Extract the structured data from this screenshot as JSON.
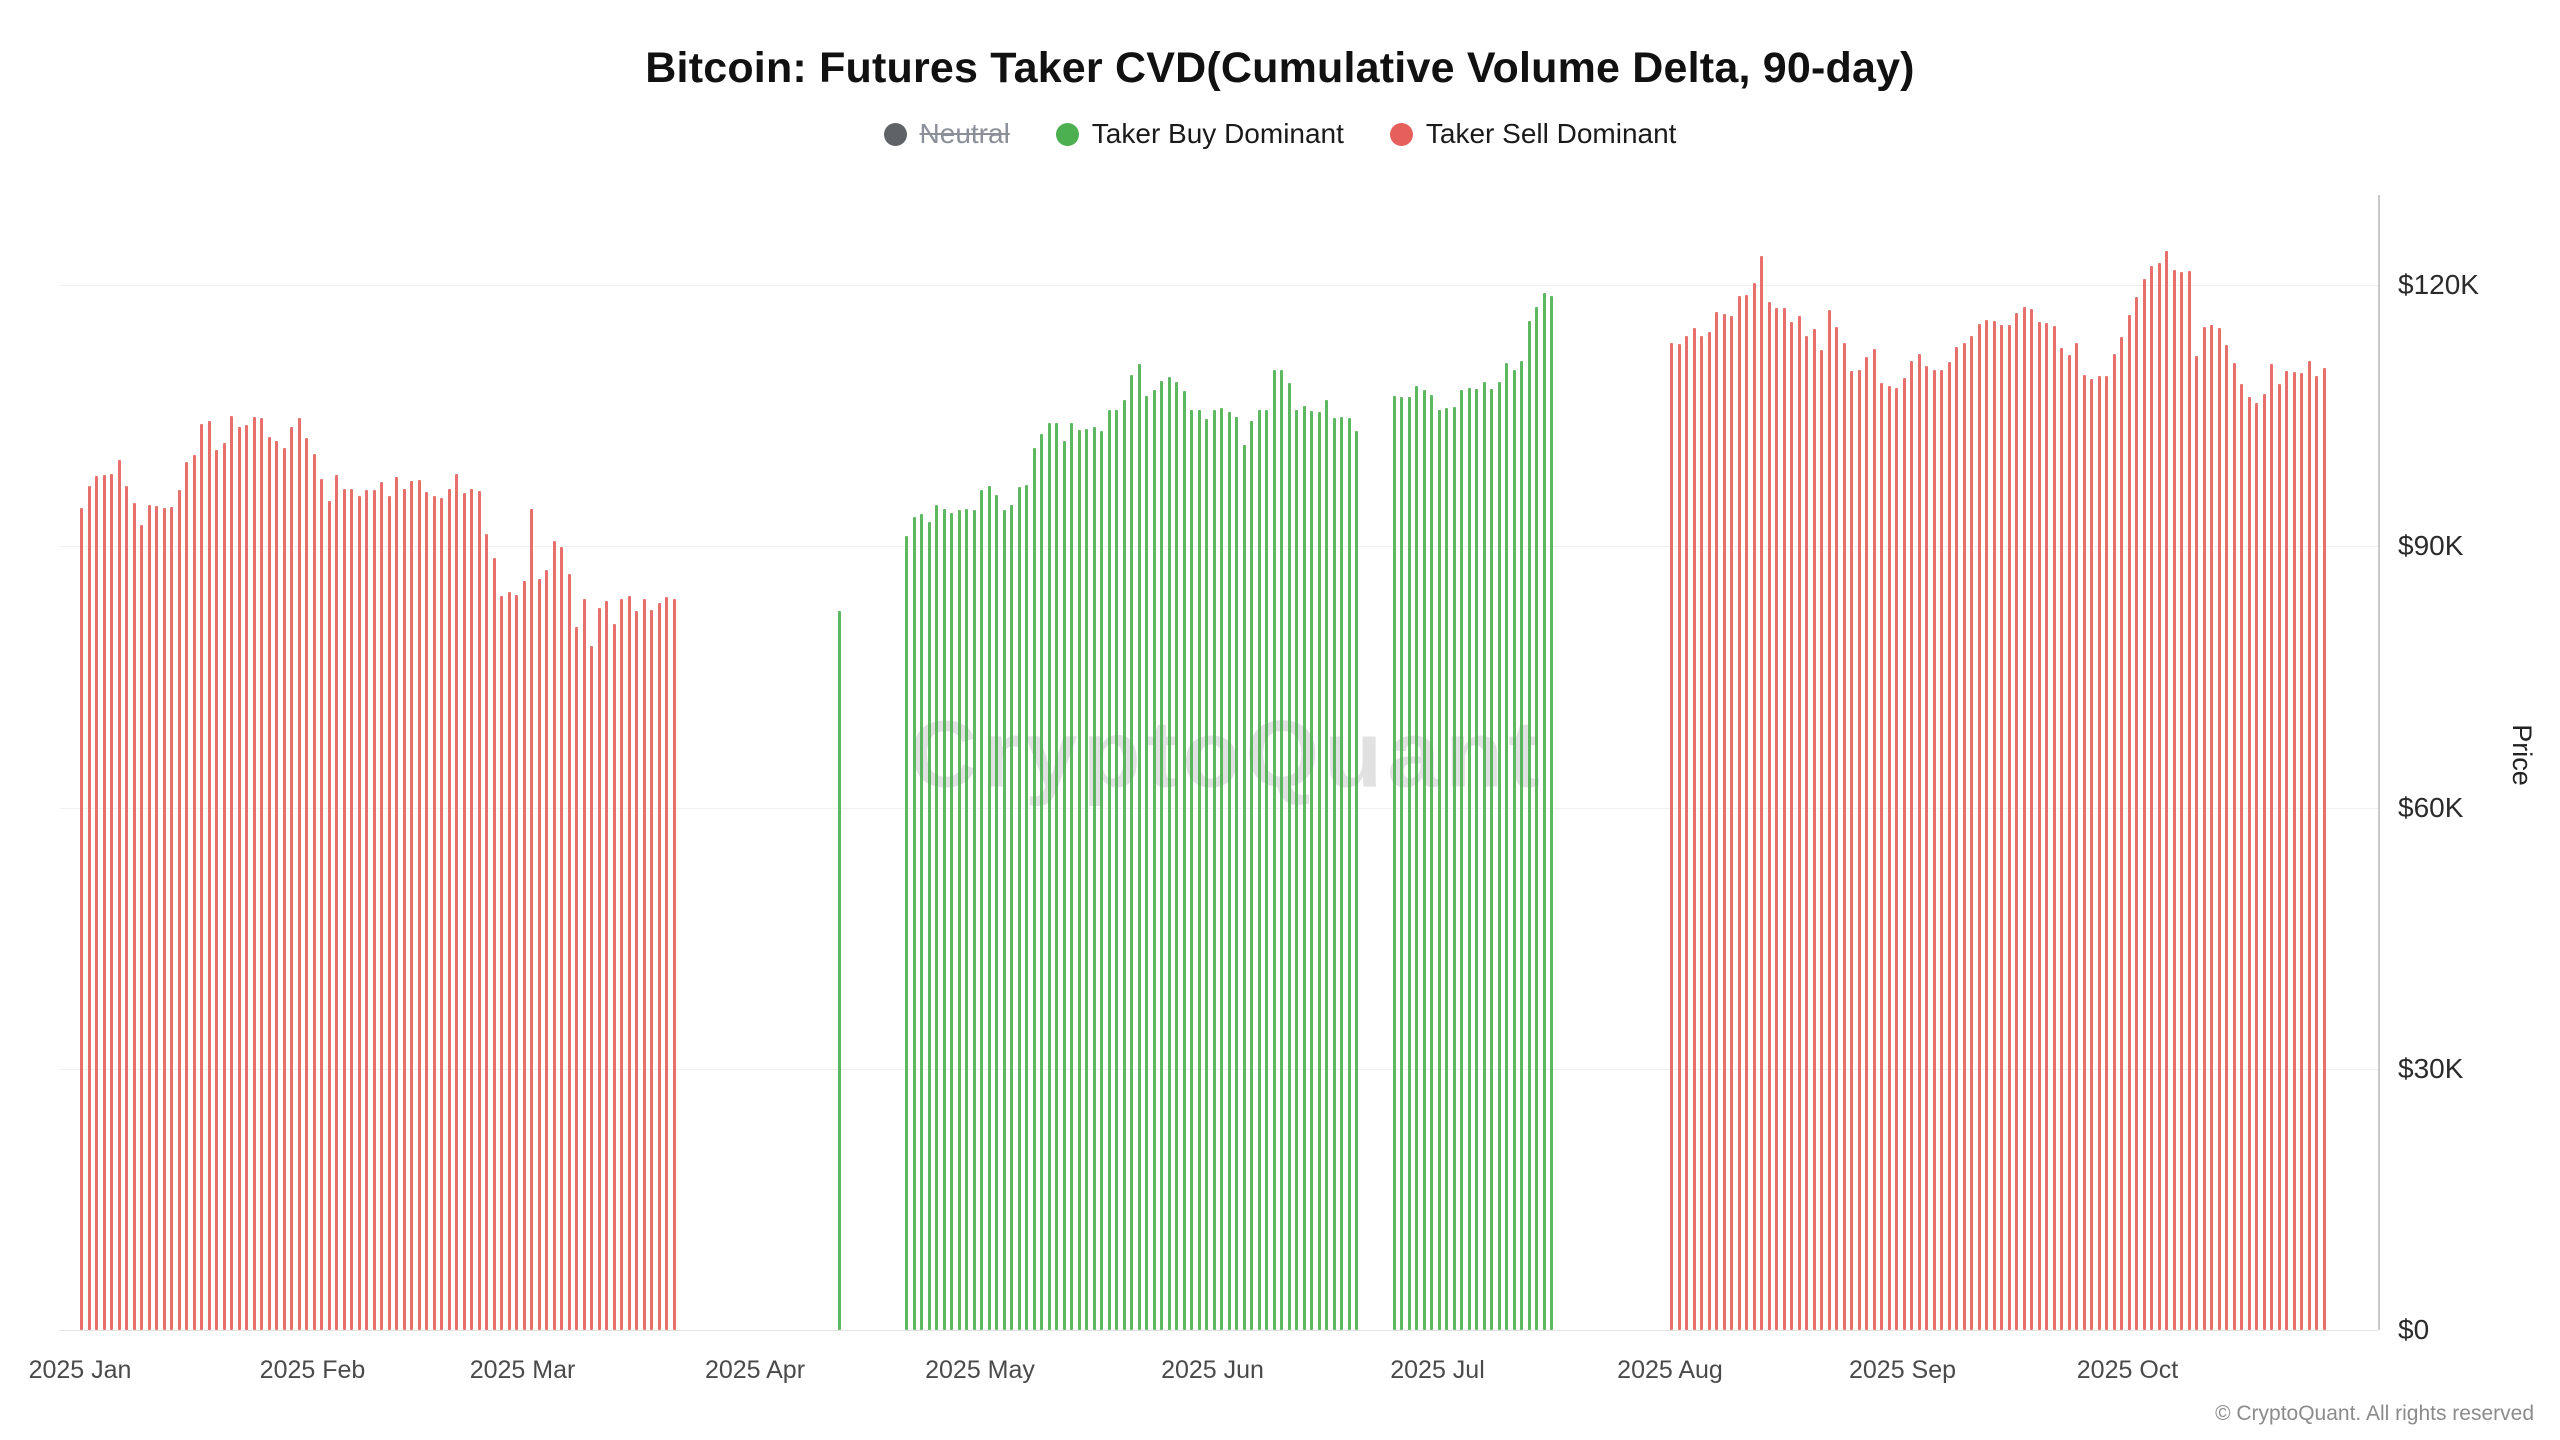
{
  "title": "Bitcoin: Futures Taker CVD(Cumulative Volume Delta, 90-day)",
  "watermark": "CryptoQuant",
  "copyright": "© CryptoQuant. All rights reserved",
  "legend": [
    {
      "label": "Neutral",
      "color": "#5f6368",
      "disabled": true
    },
    {
      "label": "Taker Buy Dominant",
      "color": "#4caf50",
      "disabled": false
    },
    {
      "label": "Taker Sell Dominant",
      "color": "#e5605c",
      "disabled": false
    }
  ],
  "chart_data": {
    "type": "bar",
    "title": "Bitcoin: Futures Taker CVD(Cumulative Volume Delta, 90-day)",
    "xlabel": "",
    "ylabel": "Price",
    "unit": "USD thousands",
    "ylim": [
      0,
      130
    ],
    "grid": true,
    "legend_position": "top",
    "y_ticks": [
      {
        "value": 0,
        "label": "$0"
      },
      {
        "value": 30,
        "label": "$30K"
      },
      {
        "value": 60,
        "label": "$60K"
      },
      {
        "value": 90,
        "label": "$90K"
      },
      {
        "value": 120,
        "label": "$120K"
      }
    ],
    "x_ticks": [
      {
        "day": 0,
        "label": "2025 Jan"
      },
      {
        "day": 31,
        "label": "2025 Feb"
      },
      {
        "day": 59,
        "label": "2025 Mar"
      },
      {
        "day": 90,
        "label": "2025 Apr"
      },
      {
        "day": 120,
        "label": "2025 May"
      },
      {
        "day": 151,
        "label": "2025 Jun"
      },
      {
        "day": 181,
        "label": "2025 Jul"
      },
      {
        "day": 212,
        "label": "2025 Aug"
      },
      {
        "day": 243,
        "label": "2025 Sep"
      },
      {
        "day": 273,
        "label": "2025 Oct"
      }
    ],
    "start_date": "2025-01-01",
    "colors": {
      "buy": "#4caf50",
      "sell": "#e5605c",
      "neutral": "#5f6368"
    },
    "segments": [
      {
        "side": "sell",
        "start": "2025-01-01",
        "prices": [
          94.4,
          96.9,
          98.1,
          98.2,
          98.3,
          99.9,
          96.9,
          95.0,
          92.5,
          94.7,
          94.6,
          94.4,
          94.5,
          96.5,
          99.7,
          100.5,
          104.0,
          104.4,
          101.1,
          101.9,
          105.0,
          103.7,
          103.9,
          104.8,
          104.7,
          102.6,
          102.1,
          101.3,
          103.7,
          104.7,
          102.4,
          100.6,
          97.7,
          95.2,
          98.2,
          96.6,
          96.6,
          95.8,
          96.5,
          96.5,
          97.4,
          95.8,
          97.9,
          96.6,
          97.5,
          97.6,
          96.2,
          95.8,
          95.6,
          96.6,
          98.3,
          96.1,
          96.6,
          96.3,
          91.4,
          88.6,
          84.3,
          84.7,
          84.4,
          86.0,
          94.3,
          86.2,
          87.3,
          90.6,
          89.9,
          86.8,
          80.7,
          83.9,
          78.5,
          82.9,
          83.7,
          81.1,
          83.9,
          84.3,
          82.6,
          84.0,
          82.7,
          83.5,
          84.2,
          84.0
        ]
      },
      {
        "side": "buy",
        "start": "2025-04-12",
        "prices": [
          82.6
        ]
      },
      {
        "side": "buy",
        "start": "2025-04-21",
        "prices": [
          91.2,
          93.4,
          93.7,
          92.8,
          94.7,
          94.3,
          93.8,
          94.2,
          94.3,
          94.2,
          96.5,
          96.9,
          95.9,
          94.2,
          94.7,
          96.8,
          97.0,
          101.3,
          102.9,
          104.1,
          104.1,
          102.1,
          104.2,
          103.3,
          103.5,
          103.7,
          103.2,
          105.6,
          105.6,
          106.8,
          109.7,
          110.9,
          107.3,
          107.9,
          109.0,
          109.4,
          108.9,
          107.8,
          105.6,
          105.7,
          104.6,
          105.7,
          105.9,
          105.4,
          104.8,
          101.6,
          104.4,
          105.6,
          105.7,
          110.3,
          110.2,
          108.7,
          105.6,
          106.1,
          105.5,
          105.4,
          106.8,
          104.7,
          104.9,
          104.7,
          103.2
        ]
      },
      {
        "side": "buy",
        "start": "2025-06-25",
        "prices": [
          107.3,
          107.1,
          107.2,
          108.4,
          108.0,
          107.4,
          105.7,
          105.9,
          106.0,
          108.0,
          108.2,
          108.1,
          108.9,
          108.1,
          108.9,
          111.0,
          110.3,
          111.3,
          115.9,
          117.5,
          119.1,
          118.7
        ]
      },
      {
        "side": "sell",
        "start": "2025-08-01",
        "prices": [
          113.4,
          113.2,
          114.2,
          115.1,
          114.1,
          114.6,
          116.9,
          116.7,
          116.5,
          118.7,
          118.8,
          120.2,
          123.3,
          118.1,
          117.4,
          117.4,
          115.8,
          116.5,
          114.1,
          114.9,
          112.5,
          117.1,
          115.2,
          113.4,
          110.1,
          110.2,
          111.7,
          112.7,
          108.8,
          108.4,
          108.2,
          109.3,
          111.3,
          112.1,
          110.7,
          110.3,
          110.3,
          111.2,
          112.9,
          113.4,
          114.1,
          115.5,
          116.0,
          115.9,
          115.4,
          115.4,
          116.8,
          117.5,
          117.3,
          115.7,
          115.6,
          115.3,
          112.8,
          112.0,
          113.4,
          109.7,
          109.2,
          109.6,
          109.5,
          112.1,
          114.0,
          116.6,
          118.6,
          120.7,
          122.2,
          122.5,
          123.9,
          121.7,
          121.5,
          121.6,
          111.9,
          115.2,
          115.4,
          115.1,
          113.1,
          111.1,
          108.6,
          107.2,
          106.4,
          107.5,
          110.9,
          108.6,
          110.1,
          110.0,
          109.9,
          111.3,
          109.6,
          110.5
        ]
      }
    ]
  }
}
